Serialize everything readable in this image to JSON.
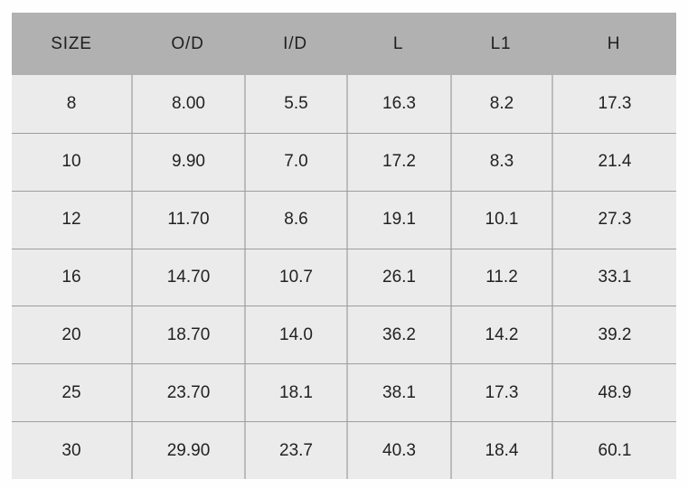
{
  "chart_data": {
    "type": "table",
    "title": "",
    "columns": [
      "SIZE",
      "O/D",
      "I/D",
      "L",
      "L1",
      "H"
    ],
    "rows": [
      [
        "8",
        "8.00",
        "5.5",
        "16.3",
        "8.2",
        "17.3"
      ],
      [
        "10",
        "9.90",
        "7.0",
        "17.2",
        "8.3",
        "21.4"
      ],
      [
        "12",
        "11.70",
        "8.6",
        "19.1",
        "10.1",
        "27.3"
      ],
      [
        "16",
        "14.70",
        "10.7",
        "26.1",
        "11.2",
        "33.1"
      ],
      [
        "20",
        "18.70",
        "14.0",
        "36.2",
        "14.2",
        "39.2"
      ],
      [
        "25",
        "23.70",
        "18.1",
        "38.1",
        "17.3",
        "48.9"
      ],
      [
        "30",
        "29.90",
        "23.7",
        "40.3",
        "18.4",
        "60.1"
      ]
    ],
    "layout": {
      "grid": "on",
      "header_position": "top"
    }
  },
  "colors": {
    "page_background": "#fefefe",
    "header_background": "#b1b1b1",
    "row_background": "#ebebeb",
    "horizontal_divider": "#9e9e9e",
    "vertical_divider": "#bcbcbc",
    "text": "#222222"
  }
}
